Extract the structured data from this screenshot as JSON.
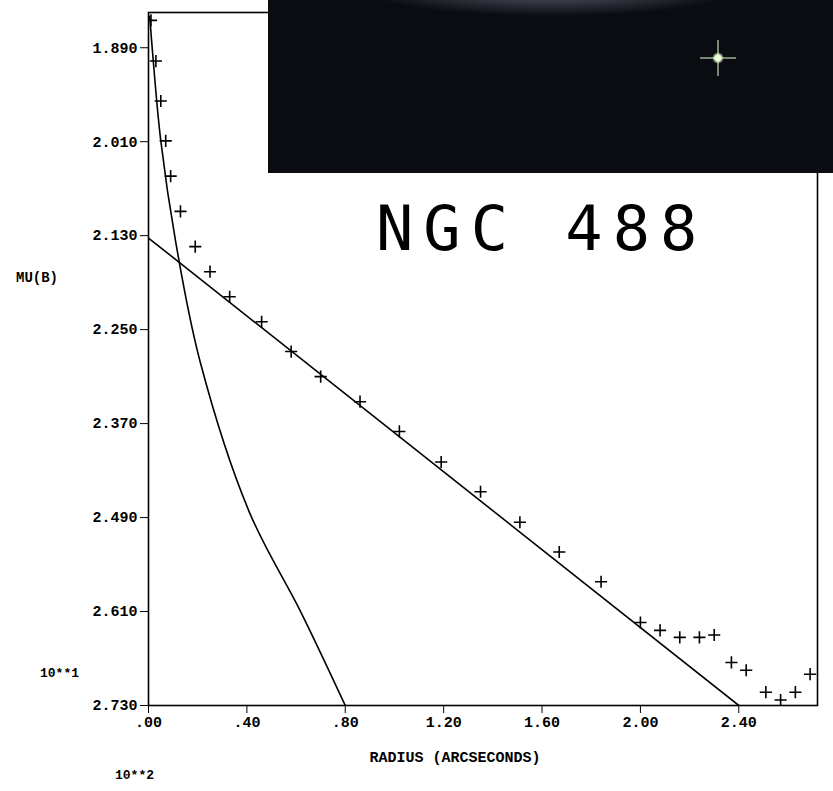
{
  "chart_data": {
    "type": "scatter",
    "title": "NGC 488",
    "xlabel": "RADIUS (ARCSECONDS)",
    "ylabel": "MU(B)",
    "annotations": [
      "10**1",
      "10**2"
    ],
    "xlim": [
      0,
      2.72
    ],
    "ylim": [
      1.845,
      2.73
    ],
    "xticks": [
      {
        "value": 0,
        "label": ".00"
      },
      {
        "value": 0.4,
        "label": ".40"
      },
      {
        "value": 0.8,
        "label": ".80"
      },
      {
        "value": 1.2,
        "label": "1.20"
      },
      {
        "value": 1.6,
        "label": "1.60"
      },
      {
        "value": 2.0,
        "label": "2.00"
      },
      {
        "value": 2.4,
        "label": "2.40"
      }
    ],
    "yticks": [
      {
        "value": 1.89,
        "label": "1.890"
      },
      {
        "value": 2.01,
        "label": "2.010"
      },
      {
        "value": 2.13,
        "label": "2.130"
      },
      {
        "value": 2.25,
        "label": "2.250"
      },
      {
        "value": 2.37,
        "label": "2.370"
      },
      {
        "value": 2.49,
        "label": "2.490"
      },
      {
        "value": 2.61,
        "label": "2.610"
      },
      {
        "value": 2.73,
        "label": "2.730"
      }
    ],
    "series": [
      {
        "type": "scatter",
        "marker": "plus",
        "color": "#000000",
        "x": [
          0.01,
          0.03,
          0.05,
          0.07,
          0.09,
          0.13,
          0.19,
          0.25,
          0.33,
          0.46,
          0.58,
          0.7,
          0.86,
          1.02,
          1.19,
          1.35,
          1.51,
          1.67,
          1.84,
          2.0,
          2.08,
          2.16,
          2.24,
          2.3,
          2.37,
          2.43,
          2.51,
          2.57,
          2.63,
          2.69
        ],
        "values": [
          1.855,
          1.907,
          1.958,
          2.009,
          2.054,
          2.099,
          2.144,
          2.176,
          2.208,
          2.24,
          2.278,
          2.31,
          2.342,
          2.38,
          2.419,
          2.457,
          2.496,
          2.534,
          2.572,
          2.624,
          2.634,
          2.643,
          2.643,
          2.64,
          2.675,
          2.685,
          2.713,
          2.723,
          2.713,
          2.69
        ]
      },
      {
        "type": "line",
        "line_style": "solid",
        "color": "#000000",
        "x": [
          0,
          2.4
        ],
        "values": [
          2.133,
          2.73
        ]
      },
      {
        "type": "line",
        "line_style": "solid",
        "color": "#000000",
        "x": [
          0.005,
          0.016,
          0.05,
          0.11,
          0.21,
          0.41,
          0.62,
          0.8
        ],
        "values": [
          1.85,
          1.894,
          2.009,
          2.137,
          2.291,
          2.483,
          2.611,
          2.73
        ]
      }
    ]
  }
}
